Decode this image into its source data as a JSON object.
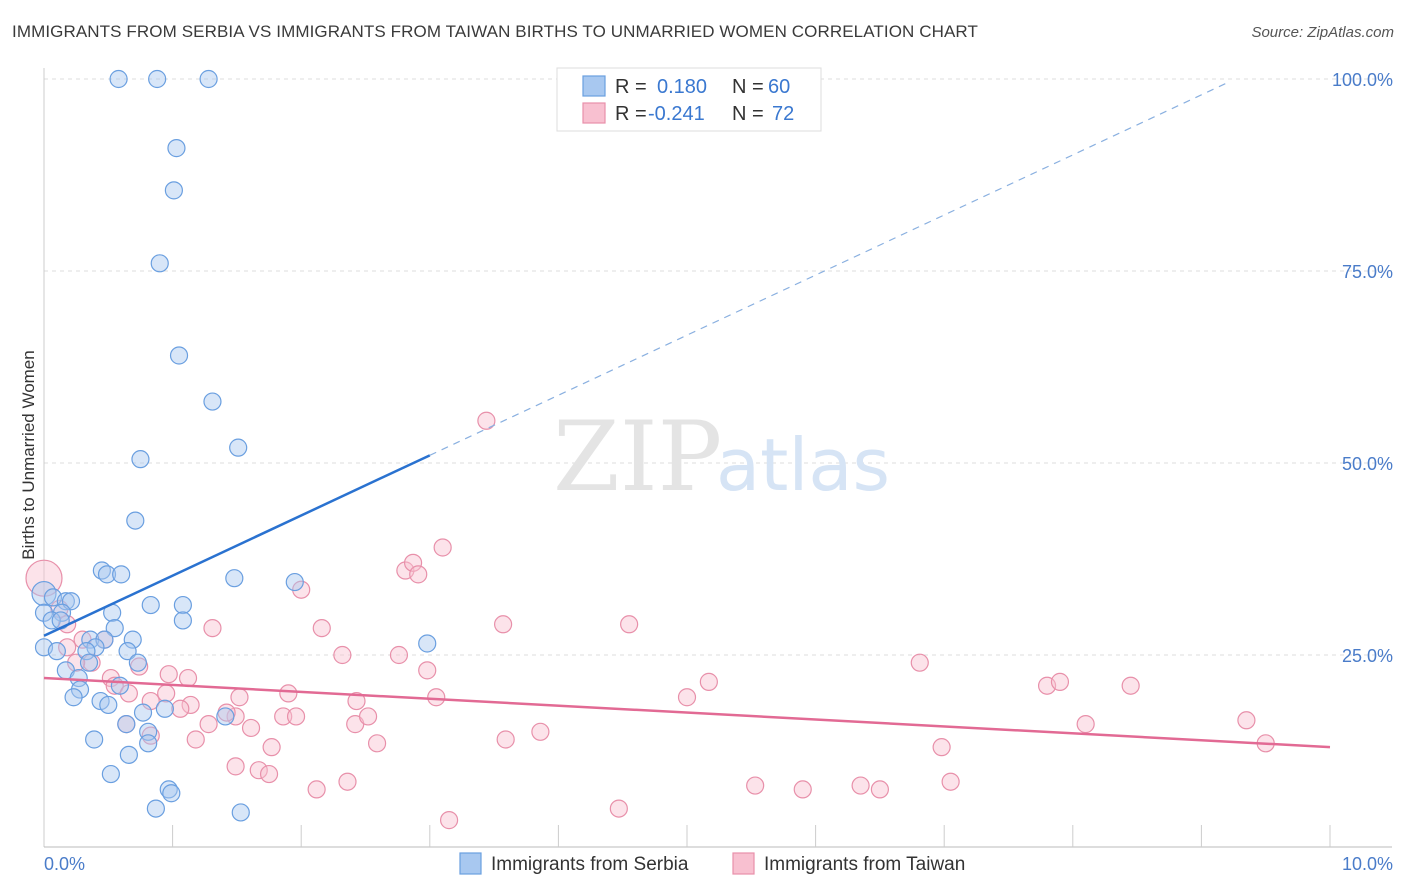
{
  "title": "IMMIGRANTS FROM SERBIA VS IMMIGRANTS FROM TAIWAN BIRTHS TO UNMARRIED WOMEN CORRELATION CHART",
  "source": "Source: ZipAtlas.com",
  "watermark": {
    "zip": "ZIP",
    "atlas": "atlas"
  },
  "colors": {
    "serbia_fill": "#a8c8f0",
    "serbia_stroke": "#6a9fe0",
    "serbia_line": "#2a72d0",
    "taiwan_fill": "#f8c0d0",
    "taiwan_stroke": "#e890aa",
    "taiwan_line": "#e26a94",
    "tick_text": "#4a7cc9",
    "grid": "#dddddd"
  },
  "legend": {
    "rows": [
      {
        "r_label": "R =",
        "r_value": "0.180",
        "n_label": "N =",
        "n_value": "60"
      },
      {
        "r_label": "R =",
        "r_value": "-0.241",
        "n_label": "N =",
        "n_value": "72"
      }
    ]
  },
  "chart_data": {
    "type": "scatter",
    "title": "IMMIGRANTS FROM SERBIA VS IMMIGRANTS FROM TAIWAN BIRTHS TO UNMARRIED WOMEN CORRELATION CHART",
    "xlabel": "",
    "ylabel": "Births to Unmarried Women",
    "xlim": [
      0,
      10
    ],
    "ylim": [
      0,
      100
    ],
    "x_ticks_labeled": [
      "0.0%",
      "10.0%"
    ],
    "y_ticks_labeled": [
      "25.0%",
      "50.0%",
      "75.0%",
      "100.0%"
    ],
    "y_tick_values": [
      25,
      50,
      75,
      100
    ],
    "grid": true,
    "legend_position": "top-center",
    "series": [
      {
        "name": "Immigrants from Serbia",
        "R": 0.18,
        "N": 60,
        "trend": {
          "x": [
            0.0,
            3.0
          ],
          "y": [
            27.5,
            51.0
          ],
          "dashed_extension": {
            "x": [
              3.0,
              9.2
            ],
            "y": [
              51.0,
              99.5
            ]
          }
        },
        "points": [
          [
            0.58,
            100
          ],
          [
            0.88,
            100
          ],
          [
            1.28,
            100
          ],
          [
            1.03,
            91
          ],
          [
            1.01,
            85.5
          ],
          [
            0.9,
            76
          ],
          [
            1.05,
            64
          ],
          [
            1.31,
            58
          ],
          [
            1.51,
            52
          ],
          [
            0.75,
            50.5
          ],
          [
            0.71,
            42.5
          ],
          [
            0.45,
            36
          ],
          [
            0.49,
            35.5
          ],
          [
            0.6,
            35.5
          ],
          [
            1.48,
            35
          ],
          [
            1.95,
            34.5
          ],
          [
            0.0,
            33
          ],
          [
            0.07,
            32.5
          ],
          [
            0.17,
            32
          ],
          [
            0.21,
            32
          ],
          [
            0.83,
            31.5
          ],
          [
            1.08,
            31.5
          ],
          [
            0.0,
            30.5
          ],
          [
            0.14,
            30.5
          ],
          [
            0.53,
            30.5
          ],
          [
            0.06,
            29.5
          ],
          [
            0.13,
            29.5
          ],
          [
            1.08,
            29.5
          ],
          [
            0.55,
            28.5
          ],
          [
            0.36,
            27
          ],
          [
            0.47,
            27
          ],
          [
            0.69,
            27
          ],
          [
            0.4,
            26
          ],
          [
            0.0,
            26
          ],
          [
            2.98,
            26.5
          ],
          [
            0.1,
            25.5
          ],
          [
            0.33,
            25.5
          ],
          [
            0.65,
            25.5
          ],
          [
            0.35,
            24
          ],
          [
            0.73,
            24
          ],
          [
            0.17,
            23
          ],
          [
            0.27,
            22
          ],
          [
            0.28,
            20.5
          ],
          [
            0.59,
            21
          ],
          [
            0.23,
            19.5
          ],
          [
            0.44,
            19
          ],
          [
            0.5,
            18.5
          ],
          [
            0.94,
            18
          ],
          [
            0.77,
            17.5
          ],
          [
            1.41,
            17
          ],
          [
            0.64,
            16
          ],
          [
            0.81,
            15
          ],
          [
            0.39,
            14
          ],
          [
            0.81,
            13.5
          ],
          [
            0.66,
            12
          ],
          [
            0.52,
            9.5
          ],
          [
            0.97,
            7.5
          ],
          [
            0.99,
            7
          ],
          [
            0.87,
            5
          ],
          [
            1.53,
            4.5
          ]
        ]
      },
      {
        "name": "Immigrants from Taiwan",
        "R": -0.241,
        "N": 72,
        "trend": {
          "x": [
            0.0,
            10.0
          ],
          "y": [
            22.0,
            13.0
          ]
        },
        "points": [
          [
            0.0,
            35
          ],
          [
            0.12,
            31
          ],
          [
            0.18,
            29
          ],
          [
            0.3,
            27
          ],
          [
            0.47,
            27
          ],
          [
            0.18,
            26
          ],
          [
            0.37,
            24
          ],
          [
            0.25,
            24
          ],
          [
            0.52,
            22
          ],
          [
            0.74,
            23.5
          ],
          [
            0.97,
            22.5
          ],
          [
            1.12,
            22
          ],
          [
            0.55,
            21
          ],
          [
            0.66,
            20
          ],
          [
            0.95,
            20
          ],
          [
            0.83,
            19
          ],
          [
            1.14,
            18.5
          ],
          [
            1.06,
            18
          ],
          [
            0.64,
            16
          ],
          [
            1.28,
            16
          ],
          [
            1.49,
            17
          ],
          [
            0.83,
            14.5
          ],
          [
            1.18,
            14
          ],
          [
            1.42,
            17.5
          ],
          [
            1.52,
            19.5
          ],
          [
            1.61,
            15.5
          ],
          [
            1.77,
            13
          ],
          [
            1.9,
            20
          ],
          [
            1.86,
            17
          ],
          [
            1.96,
            17
          ],
          [
            1.49,
            10.5
          ],
          [
            1.67,
            10
          ],
          [
            1.75,
            9.5
          ],
          [
            2.16,
            28.5
          ],
          [
            2.32,
            25
          ],
          [
            2.42,
            16
          ],
          [
            2.43,
            19
          ],
          [
            2.52,
            17
          ],
          [
            2.59,
            13.5
          ],
          [
            2.76,
            25
          ],
          [
            2.81,
            36
          ],
          [
            2.87,
            37
          ],
          [
            2.98,
            23
          ],
          [
            3.1,
            39
          ],
          [
            3.05,
            19.5
          ],
          [
            1.31,
            28.5
          ],
          [
            2.0,
            33.5
          ],
          [
            2.91,
            35.5
          ],
          [
            3.44,
            55.5
          ],
          [
            3.57,
            29
          ],
          [
            3.59,
            14
          ],
          [
            3.86,
            15
          ],
          [
            4.55,
            29
          ],
          [
            5.0,
            19.5
          ],
          [
            5.17,
            21.5
          ],
          [
            5.53,
            8
          ],
          [
            5.9,
            7.5
          ],
          [
            6.35,
            8
          ],
          [
            6.5,
            7.5
          ],
          [
            6.81,
            24
          ],
          [
            6.98,
            13
          ],
          [
            7.05,
            8.5
          ],
          [
            7.8,
            21
          ],
          [
            7.9,
            21.5
          ],
          [
            8.1,
            16
          ],
          [
            8.45,
            21
          ],
          [
            9.35,
            16.5
          ],
          [
            9.5,
            13.5
          ],
          [
            2.12,
            7.5
          ],
          [
            2.36,
            8.5
          ],
          [
            3.15,
            3.5
          ],
          [
            4.47,
            5
          ]
        ]
      }
    ]
  },
  "bottom_legend": [
    "Immigrants from Serbia",
    "Immigrants from Taiwan"
  ]
}
